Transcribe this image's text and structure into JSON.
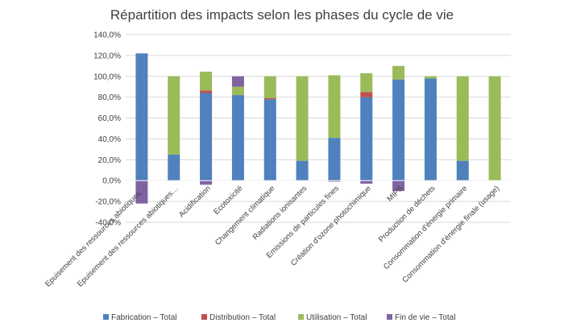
{
  "chart_data": {
    "type": "bar",
    "stacked": true,
    "title": "Répartition des impacts selon les phases du cycle de vie",
    "xlabel": "",
    "ylabel": "",
    "ylim": [
      -40,
      140
    ],
    "yticks": [
      -40,
      -20,
      0,
      20,
      40,
      60,
      80,
      100,
      120,
      140
    ],
    "ytick_labels": [
      "-40,0%",
      "-20,0%",
      "0,0%",
      "20,0%",
      "40,0%",
      "60,0%",
      "80,0%",
      "100,0%",
      "120,0%",
      "140,0%"
    ],
    "grid": true,
    "legend_position": "bottom",
    "categories": [
      "Epuisement des ressources abiotiques…",
      "Epuisement des ressources abiotiques…",
      "Acidification",
      "Ecotoxicité",
      "Changement climatique",
      "Radiations ionisantes",
      "Emissions de particules fines",
      "Création d'ozone photochimique",
      "MIPS",
      "Production de déchets",
      "Consommation d'énergie primaire",
      "Consommation d'énergie finale (usage)"
    ],
    "series": [
      {
        "name": "Fabrication – Total",
        "color": "#4f81bd",
        "values": [
          122,
          25,
          84,
          82,
          78,
          19,
          41,
          80,
          97,
          98,
          19,
          0
        ]
      },
      {
        "name": "Distribution – Total",
        "color": "#c0504d",
        "values": [
          0,
          0,
          2.5,
          0,
          1,
          0,
          0,
          5,
          0,
          0,
          0,
          0
        ]
      },
      {
        "name": "Utilisation – Total",
        "color": "#9bbb59",
        "values": [
          0,
          75,
          18,
          8,
          21,
          81,
          60,
          18,
          13,
          2,
          81,
          100
        ]
      },
      {
        "name": "Fin de vie – Total",
        "color": "#8064a2",
        "values": [
          -22,
          0,
          -4,
          10,
          0,
          0,
          -1,
          -3,
          -10,
          0,
          0,
          0
        ]
      }
    ]
  }
}
